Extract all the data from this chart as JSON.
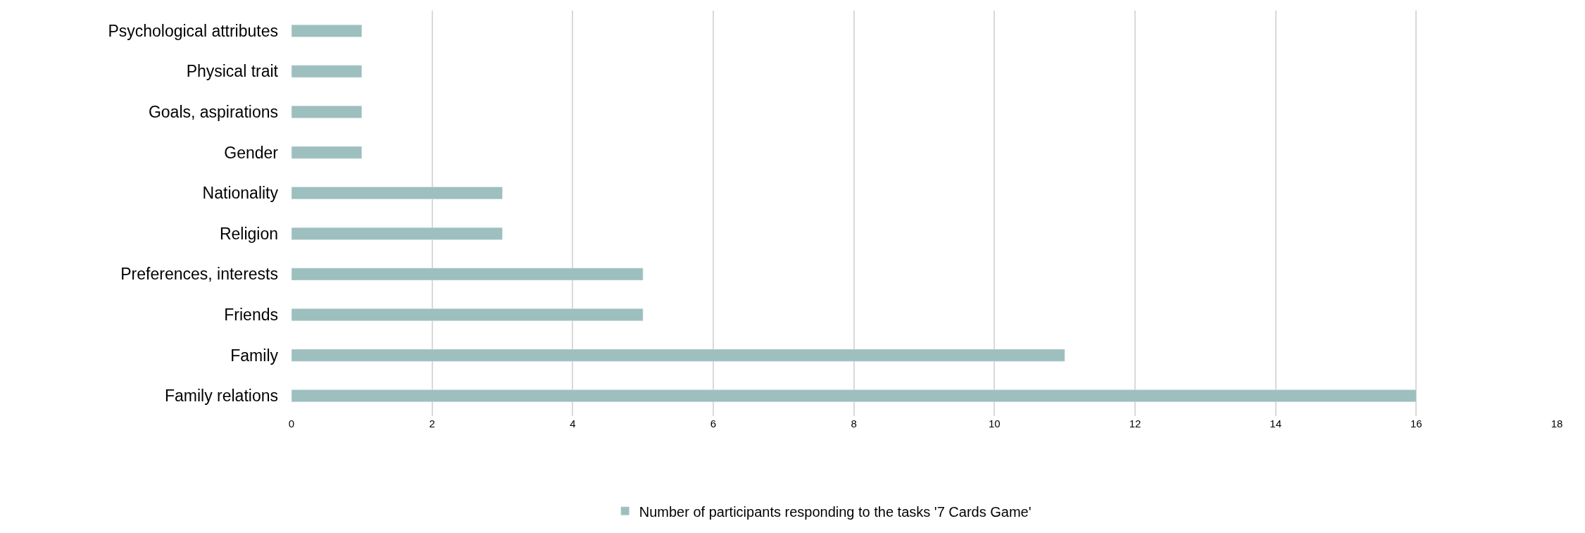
{
  "chart_data": {
    "type": "bar",
    "orientation": "horizontal",
    "categories": [
      "Psychological attributes",
      "Physical trait",
      "Goals, aspirations",
      "Gender",
      "Nationality",
      "Religion",
      "Preferences, interests",
      "Friends",
      "Family",
      "Family relations"
    ],
    "series": [
      {
        "name": "Number of participants responding to the tasks '7 Cards Game'",
        "color": "#9dbfbe",
        "values": [
          1,
          1,
          1,
          1,
          3,
          3,
          5,
          5,
          11,
          16
        ]
      }
    ],
    "xlim": [
      0,
      18
    ],
    "xticks": [
      0,
      2,
      4,
      6,
      8,
      10,
      12,
      14,
      16,
      18
    ],
    "grid": "x",
    "legend": "bottom"
  }
}
